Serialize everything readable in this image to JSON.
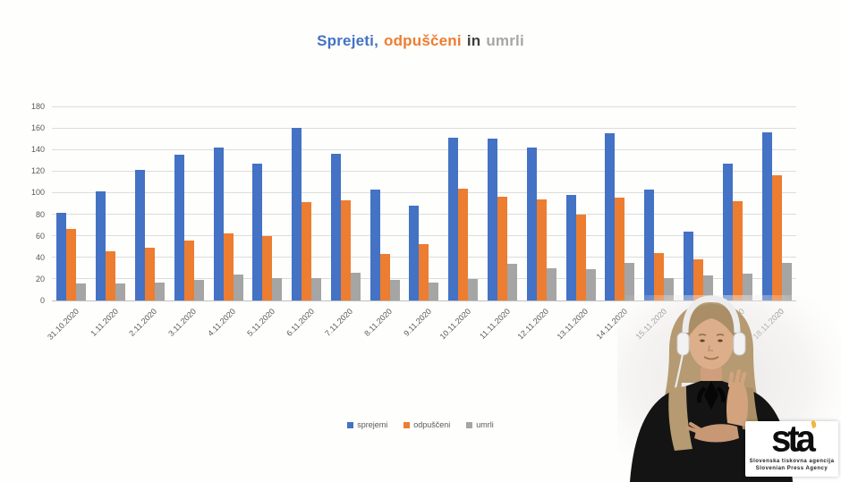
{
  "title": {
    "sprejeti": "Sprejeti,",
    "odpusceni": "odpuščeni",
    "in": "in",
    "umrli": "umrli"
  },
  "title_colors": {
    "sprejeti": "#4472C4",
    "odpusceni": "#ED7D31",
    "in": "#3F3F3F",
    "umrli": "#A6A6A6"
  },
  "axis": {
    "text_color": "#595959",
    "grid_color": "#DCDCDC",
    "axis_line_color": "#BFBFBF"
  },
  "chart_data": {
    "type": "bar",
    "title": "Sprejeti, odpuščeni in umrli",
    "categories": [
      "31.10.2020",
      "1.11.2020",
      "2.11.2020",
      "3.11.2020",
      "4.11.2020",
      "5.11.2020",
      "6.11.2020",
      "7.11.2020",
      "8.11.2020",
      "9.11.2020",
      "10.11.2020",
      "11.11.2020",
      "12.11.2020",
      "13.11.2020",
      "14.11.2020",
      "15.11.2020",
      "16.11.2020",
      "17.11.2020",
      "18.11.2020"
    ],
    "series": [
      {
        "name": "sprejemi",
        "color": "#4472C4",
        "values": [
          81,
          101,
          121,
          135,
          142,
          127,
          160,
          136,
          103,
          88,
          151,
          150,
          142,
          98,
          155,
          103,
          64,
          127,
          156
        ]
      },
      {
        "name": "odpuščeni",
        "color": "#ED7D31",
        "values": [
          66,
          46,
          49,
          56,
          62,
          60,
          91,
          93,
          43,
          52,
          104,
          96,
          94,
          80,
          95,
          44,
          38,
          92,
          116
        ]
      },
      {
        "name": "umrli",
        "color": "#A5A5A5",
        "values": [
          16,
          16,
          17,
          19,
          24,
          21,
          21,
          26,
          19,
          17,
          20,
          34,
          30,
          29,
          35,
          21,
          23,
          25,
          35
        ]
      }
    ],
    "ylim": [
      0,
      180
    ],
    "ytick_step": 20,
    "grid": true,
    "legend_position": "bottom"
  },
  "logo": {
    "brand": "sta",
    "line1": "Slovenska tiskovna agencija",
    "line2": "Slovenian Press Agency"
  }
}
